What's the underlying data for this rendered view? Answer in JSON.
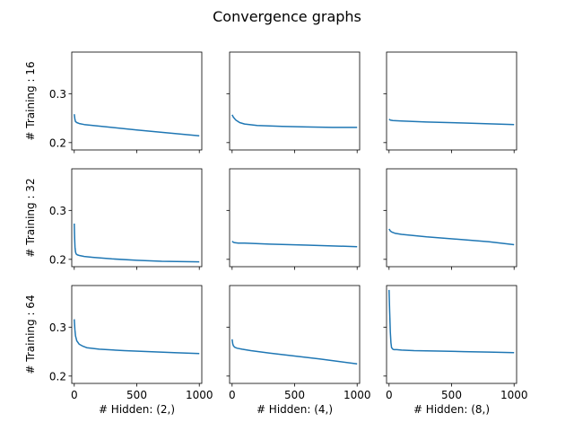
{
  "figure": {
    "suptitle": "Convergence graphs"
  },
  "colors": {
    "line": "#1f77b4",
    "axes": "#000000",
    "background": "#ffffff"
  },
  "chart_data": {
    "type": "line",
    "layout": {
      "rows": 3,
      "cols": 3,
      "sharex": true,
      "sharey": true
    },
    "xlim": [
      -20,
      1020
    ],
    "ylim": [
      0.185,
      0.385
    ],
    "xticks": [
      0,
      500,
      1000
    ],
    "xtick_labels": [
      "0",
      "500",
      "1000"
    ],
    "yticks": [
      0.2,
      0.3
    ],
    "ytick_labels": [
      "0.2",
      "0.3"
    ],
    "row_labels": [
      "# Training : 16",
      "# Training : 32",
      "# Training : 64"
    ],
    "col_labels": [
      "# Hidden: (2,)",
      "# Hidden: (4,)",
      "# Hidden: (8,)"
    ],
    "grid": false,
    "legend": false,
    "panels": [
      {
        "row": 0,
        "col": 0,
        "x": [
          0,
          5,
          10,
          20,
          40,
          80,
          150,
          300,
          500,
          700,
          1000
        ],
        "y": [
          0.258,
          0.248,
          0.243,
          0.241,
          0.239,
          0.237,
          0.235,
          0.231,
          0.226,
          0.221,
          0.214
        ]
      },
      {
        "row": 0,
        "col": 1,
        "x": [
          0,
          10,
          30,
          60,
          100,
          200,
          400,
          600,
          800,
          1000
        ],
        "y": [
          0.257,
          0.252,
          0.246,
          0.241,
          0.238,
          0.235,
          0.233,
          0.232,
          0.231,
          0.231
        ]
      },
      {
        "row": 0,
        "col": 2,
        "x": [
          0,
          10,
          30,
          100,
          300,
          600,
          1000
        ],
        "y": [
          0.248,
          0.246,
          0.245,
          0.244,
          0.242,
          0.24,
          0.237
        ]
      },
      {
        "row": 1,
        "col": 0,
        "x": [
          0,
          3,
          6,
          10,
          15,
          25,
          40,
          80,
          150,
          300,
          500,
          700,
          1000
        ],
        "y": [
          0.273,
          0.245,
          0.225,
          0.215,
          0.211,
          0.209,
          0.208,
          0.206,
          0.204,
          0.201,
          0.198,
          0.196,
          0.195
        ]
      },
      {
        "row": 1,
        "col": 1,
        "x": [
          0,
          10,
          20,
          50,
          100,
          300,
          600,
          1000
        ],
        "y": [
          0.237,
          0.235,
          0.234,
          0.233,
          0.233,
          0.231,
          0.229,
          0.226
        ]
      },
      {
        "row": 1,
        "col": 2,
        "x": [
          0,
          10,
          20,
          50,
          100,
          300,
          600,
          800,
          1000
        ],
        "y": [
          0.262,
          0.258,
          0.256,
          0.253,
          0.251,
          0.246,
          0.24,
          0.236,
          0.23
        ]
      },
      {
        "row": 2,
        "col": 0,
        "x": [
          0,
          5,
          10,
          20,
          40,
          70,
          100,
          200,
          400,
          600,
          800,
          1000
        ],
        "y": [
          0.316,
          0.295,
          0.282,
          0.272,
          0.265,
          0.261,
          0.258,
          0.255,
          0.252,
          0.25,
          0.248,
          0.246
        ]
      },
      {
        "row": 2,
        "col": 1,
        "x": [
          0,
          5,
          10,
          20,
          40,
          80,
          150,
          300,
          500,
          700,
          850,
          1000
        ],
        "y": [
          0.275,
          0.266,
          0.262,
          0.259,
          0.257,
          0.255,
          0.252,
          0.247,
          0.241,
          0.235,
          0.23,
          0.225
        ]
      },
      {
        "row": 2,
        "col": 2,
        "x": [
          0,
          5,
          10,
          15,
          20,
          30,
          40,
          60,
          100,
          200,
          400,
          600,
          800,
          1000
        ],
        "y": [
          0.376,
          0.33,
          0.29,
          0.268,
          0.258,
          0.255,
          0.254,
          0.254,
          0.253,
          0.252,
          0.251,
          0.25,
          0.249,
          0.248
        ]
      }
    ]
  }
}
